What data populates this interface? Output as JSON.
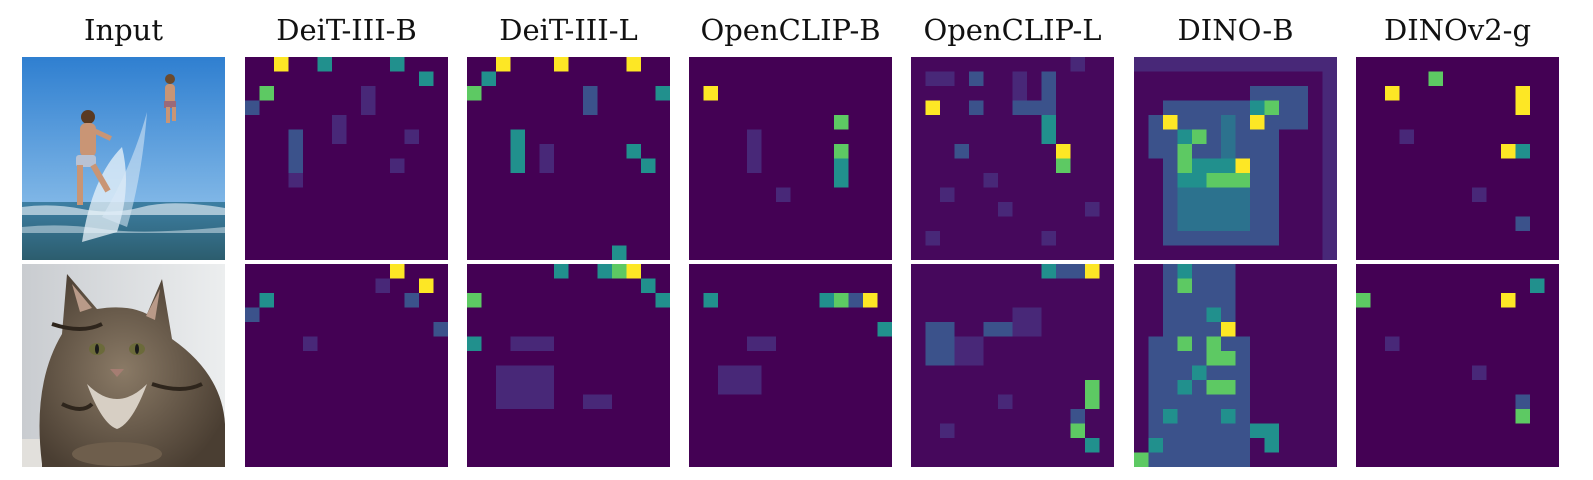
{
  "figure": {
    "columns": [
      {
        "id": "input",
        "label": "Input"
      },
      {
        "id": "deit3b",
        "label": "DeiT-III-B"
      },
      {
        "id": "deit3l",
        "label": "DeiT-III-L"
      },
      {
        "id": "oclipb",
        "label": "OpenCLIP-B"
      },
      {
        "id": "oclipl",
        "label": "OpenCLIP-L"
      },
      {
        "id": "dinob",
        "label": "DINO-B"
      },
      {
        "id": "dinov2g",
        "label": "DINOv2-g"
      }
    ],
    "rows": [
      {
        "id": "beach",
        "input_image": "photo of children jumping and splashing in ocean waves"
      },
      {
        "id": "cat",
        "input_image": "photo of a tabby cat lying down"
      }
    ],
    "colormap": [
      "#440154",
      "#3b528b",
      "#21908d",
      "#5dc963",
      "#fde725"
    ]
  }
}
